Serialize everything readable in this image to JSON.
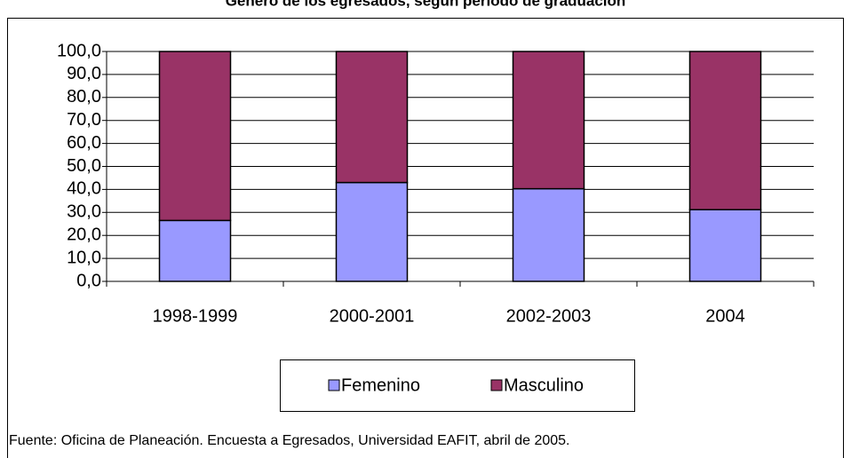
{
  "chart_data": {
    "type": "stacked_bar",
    "title": "Género de los egresados, según período de graduación",
    "categories": [
      "1998-1999",
      "2000-2001",
      "2002-2003",
      "2004"
    ],
    "series": [
      {
        "name": "Femenino",
        "color": "#9999ff",
        "values": [
          26.5,
          43.0,
          40.3,
          31.2
        ]
      },
      {
        "name": "Masculino",
        "color": "#993366",
        "values": [
          73.5,
          57.0,
          59.7,
          68.8
        ]
      }
    ],
    "ylim": [
      0,
      100
    ],
    "yticks": [
      {
        "value": 0,
        "label": "0,0"
      },
      {
        "value": 10,
        "label": "10,0"
      },
      {
        "value": 20,
        "label": "20,0"
      },
      {
        "value": 30,
        "label": "30,0"
      },
      {
        "value": 40,
        "label": "40,0"
      },
      {
        "value": 50,
        "label": "50,0"
      },
      {
        "value": 60,
        "label": "60,0"
      },
      {
        "value": 70,
        "label": "70,0"
      },
      {
        "value": 80,
        "label": "80,0"
      },
      {
        "value": 90,
        "label": "90,0"
      },
      {
        "value": 100,
        "label": "100,0"
      }
    ],
    "grid": true,
    "legend": "bottom",
    "source": "Fuente: Oficina de Planeación. Encuesta a Egresados, Universidad EAFIT, abril de 2005."
  }
}
